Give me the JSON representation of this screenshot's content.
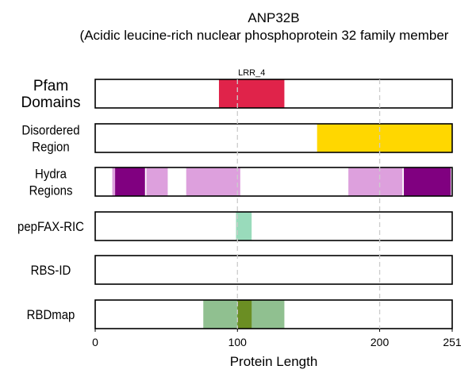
{
  "chart_data": {
    "type": "track",
    "title_line1": "ANP32B",
    "title_line2": "(Acidic leucine-rich nuclear phosphoprotein 32 family member",
    "xlabel": "Protein Length",
    "xlim": [
      0,
      251
    ],
    "xticks": [
      0,
      100,
      200,
      251
    ],
    "gridlines": [
      100,
      200
    ],
    "tracks": [
      {
        "label": [
          "Pfam",
          "Domains"
        ],
        "segments": [
          {
            "start": 87,
            "end": 133,
            "color": "#e0234a",
            "label": "LRR_4"
          }
        ]
      },
      {
        "label": [
          "Disordered",
          "Region"
        ],
        "segments": [
          {
            "start": 156,
            "end": 251,
            "color": "#ffd700"
          }
        ]
      },
      {
        "label": [
          "Hydra",
          "Regions"
        ],
        "segments": [
          {
            "start": 12,
            "end": 14,
            "color": "#dda0dd"
          },
          {
            "start": 14,
            "end": 35,
            "color": "#800080"
          },
          {
            "start": 36,
            "end": 51,
            "color": "#dda0dd"
          },
          {
            "start": 64,
            "end": 102,
            "color": "#dda0dd"
          },
          {
            "start": 178,
            "end": 216,
            "color": "#dda0dd"
          },
          {
            "start": 217,
            "end": 250,
            "color": "#800080"
          }
        ]
      },
      {
        "label": [
          "pepFAX-RIC"
        ],
        "segments": [
          {
            "start": 99,
            "end": 110,
            "color": "#99dbbb"
          }
        ]
      },
      {
        "label": [
          "RBS-ID"
        ],
        "segments": []
      },
      {
        "label": [
          "RBDmap"
        ],
        "segments": [
          {
            "start": 76,
            "end": 133,
            "color": "#90c090"
          },
          {
            "start": 100,
            "end": 110,
            "color": "#6b8e23"
          }
        ]
      }
    ]
  }
}
